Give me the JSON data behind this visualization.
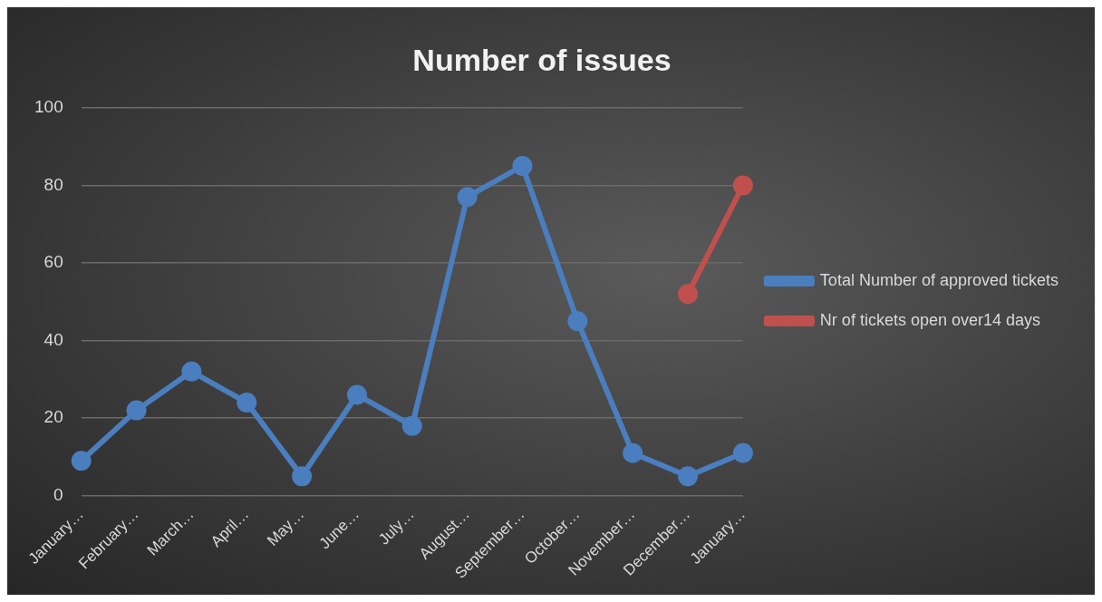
{
  "chart_data": {
    "type": "line",
    "title": "Number of issues",
    "categories": [
      "January…",
      "February…",
      "March…",
      "April…",
      "May…",
      "June…",
      "July…",
      "August…",
      "September…",
      "October…",
      "November…",
      "December…",
      "January…"
    ],
    "series": [
      {
        "name": "Total Number of approved tickets",
        "color": "#4a7ebf",
        "values": [
          9,
          22,
          32,
          24,
          5,
          26,
          18,
          77,
          85,
          45,
          11,
          5,
          11
        ]
      },
      {
        "name": "Nr of tickets open over14 days",
        "color": "#c0504d",
        "values": [
          null,
          null,
          null,
          null,
          null,
          null,
          null,
          null,
          null,
          null,
          null,
          52,
          80
        ]
      }
    ],
    "ylim": [
      0,
      100
    ],
    "yticks": [
      0,
      20,
      40,
      60,
      80,
      100
    ],
    "grid": "y",
    "legend": "right",
    "marker": "circle",
    "line_style": "solid"
  }
}
